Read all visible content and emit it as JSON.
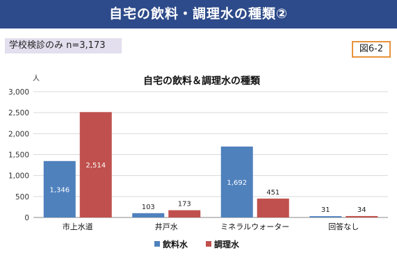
{
  "header": {
    "title": "自宅の飲料・調理水の種類②"
  },
  "subset_label": "学校検診のみ  n=3,173",
  "figure_number": "図6-2",
  "chart_data": {
    "type": "bar",
    "title": "自宅の飲料＆調理水の種類",
    "ylabel": "人",
    "xlabel": "",
    "ylim": [
      0,
      3000
    ],
    "yticks": [
      0,
      500,
      1000,
      1500,
      2000,
      2500,
      3000
    ],
    "ytick_labels": [
      "0",
      "500",
      "1,000",
      "1,500",
      "2,000",
      "2,500",
      "3,000"
    ],
    "categories": [
      "市上水道",
      "井戸水",
      "ミネラルウォーター",
      "回答なし"
    ],
    "series": [
      {
        "name": "飲料水",
        "color": "#4f81bd",
        "values": [
          1346,
          103,
          1692,
          31
        ],
        "labels": [
          "1,346",
          "103",
          "1,692",
          "31"
        ]
      },
      {
        "name": "調理水",
        "color": "#c0504d",
        "values": [
          2514,
          173,
          451,
          34
        ],
        "labels": [
          "2,514",
          "173",
          "451",
          "34"
        ]
      }
    ],
    "grid": true,
    "legend_position": "bottom"
  }
}
